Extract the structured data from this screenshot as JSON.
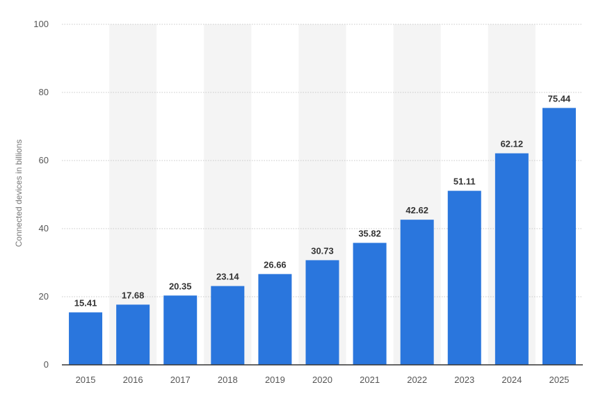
{
  "chart_data": {
    "type": "bar",
    "categories": [
      "2015",
      "2016",
      "2017",
      "2018",
      "2019",
      "2020",
      "2021",
      "2022",
      "2023",
      "2024",
      "2025"
    ],
    "values": [
      15.41,
      17.68,
      20.35,
      23.14,
      26.66,
      30.73,
      35.82,
      42.62,
      51.11,
      62.12,
      75.44
    ],
    "value_labels": [
      "15.41",
      "17.68",
      "20.35",
      "23.14",
      "26.66",
      "30.73",
      "35.82",
      "42.62",
      "51.11",
      "62.12",
      "75.44"
    ],
    "ylabel": "Connected devices in billions",
    "xlabel": "",
    "ylim": [
      0,
      100
    ],
    "yticks": [
      0,
      20,
      40,
      60,
      80,
      100
    ],
    "grid": true,
    "bar_color": "#2a76dd",
    "band_color": "#f4f4f4"
  }
}
